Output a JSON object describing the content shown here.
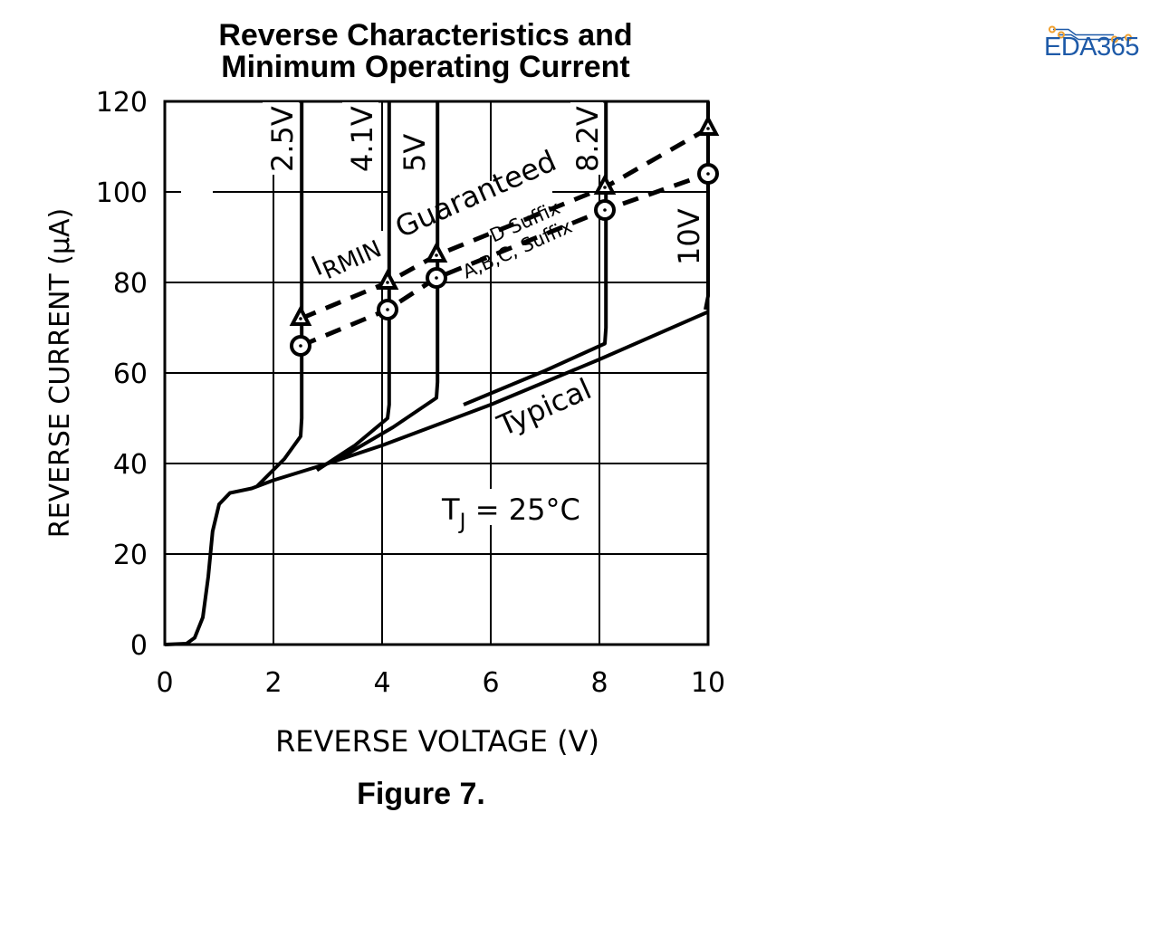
{
  "chart_data": {
    "type": "line",
    "title": "Reverse Characteristics and Minimum Operating Current",
    "xlabel": "REVERSE VOLTAGE (V)",
    "ylabel": "REVERSE CURRENT (μA)",
    "xlim": [
      0,
      10
    ],
    "ylim": [
      0,
      120
    ],
    "xticks": [
      "0",
      "2",
      "4",
      "6",
      "8",
      "10"
    ],
    "yticks": [
      "0",
      "20",
      "40",
      "60",
      "80",
      "100",
      "120"
    ],
    "grid": true,
    "series": [
      {
        "name": "Typical",
        "points": [
          [
            0,
            0
          ],
          [
            0.4,
            0.2
          ],
          [
            0.55,
            1.5
          ],
          [
            0.7,
            6
          ],
          [
            0.8,
            15
          ],
          [
            0.88,
            25
          ],
          [
            1,
            31
          ],
          [
            1.2,
            33.5
          ],
          [
            1.6,
            34.5
          ],
          [
            2,
            36.3
          ],
          [
            3,
            40
          ],
          [
            4,
            44
          ],
          [
            5,
            48.5
          ],
          [
            6,
            53
          ],
          [
            8,
            63
          ],
          [
            10,
            73.5
          ]
        ]
      },
      {
        "name": "2.5V",
        "points": [
          [
            1.7,
            35
          ],
          [
            2.2,
            41
          ],
          [
            2.5,
            46
          ],
          [
            2.52,
            50
          ],
          [
            2.52,
            120
          ]
        ]
      },
      {
        "name": "4.1V",
        "points": [
          [
            2.8,
            38.5
          ],
          [
            3.5,
            44
          ],
          [
            4.1,
            50
          ],
          [
            4.13,
            53
          ],
          [
            4.13,
            120
          ]
        ]
      },
      {
        "name": "5V",
        "points": [
          [
            3.2,
            41
          ],
          [
            4.2,
            48
          ],
          [
            5,
            54.5
          ],
          [
            5.02,
            58
          ],
          [
            5.02,
            120
          ]
        ]
      },
      {
        "name": "8.2V",
        "points": [
          [
            5.5,
            53
          ],
          [
            7,
            60.5
          ],
          [
            8.1,
            66.5
          ],
          [
            8.12,
            70
          ],
          [
            8.12,
            120
          ]
        ]
      },
      {
        "name": "10V",
        "points": [
          [
            9.95,
            74
          ],
          [
            10,
            77
          ],
          [
            10,
            120
          ]
        ]
      }
    ],
    "guaranteed": [
      {
        "name": "D Suffix",
        "marker": "triangle",
        "points": [
          [
            2.5,
            72
          ],
          [
            4.1,
            80
          ],
          [
            5,
            86
          ],
          [
            8.1,
            101
          ],
          [
            10,
            114
          ]
        ]
      },
      {
        "name": "A,B,C, Suffix",
        "marker": "circle",
        "points": [
          [
            2.5,
            66
          ],
          [
            4.1,
            74
          ],
          [
            5,
            81
          ],
          [
            8.1,
            96
          ],
          [
            10,
            104
          ]
        ]
      }
    ],
    "annotations": {
      "v25": "2.5V",
      "v41": "4.1V",
      "v5": "5V",
      "v82": "8.2V",
      "v10": "10V",
      "irmin_i": "I",
      "irmin_sub": "RMIN",
      "guaranteed": "Guaranteed",
      "d_suffix": "D Suffix",
      "abc_suffix": "A,B,C, Suffix",
      "typical": "Typical",
      "tj_t": "T",
      "tj_sub": "J",
      "tj_rest": " = 25°C"
    }
  },
  "caption": "Figure 7.",
  "logo": "EDA365"
}
